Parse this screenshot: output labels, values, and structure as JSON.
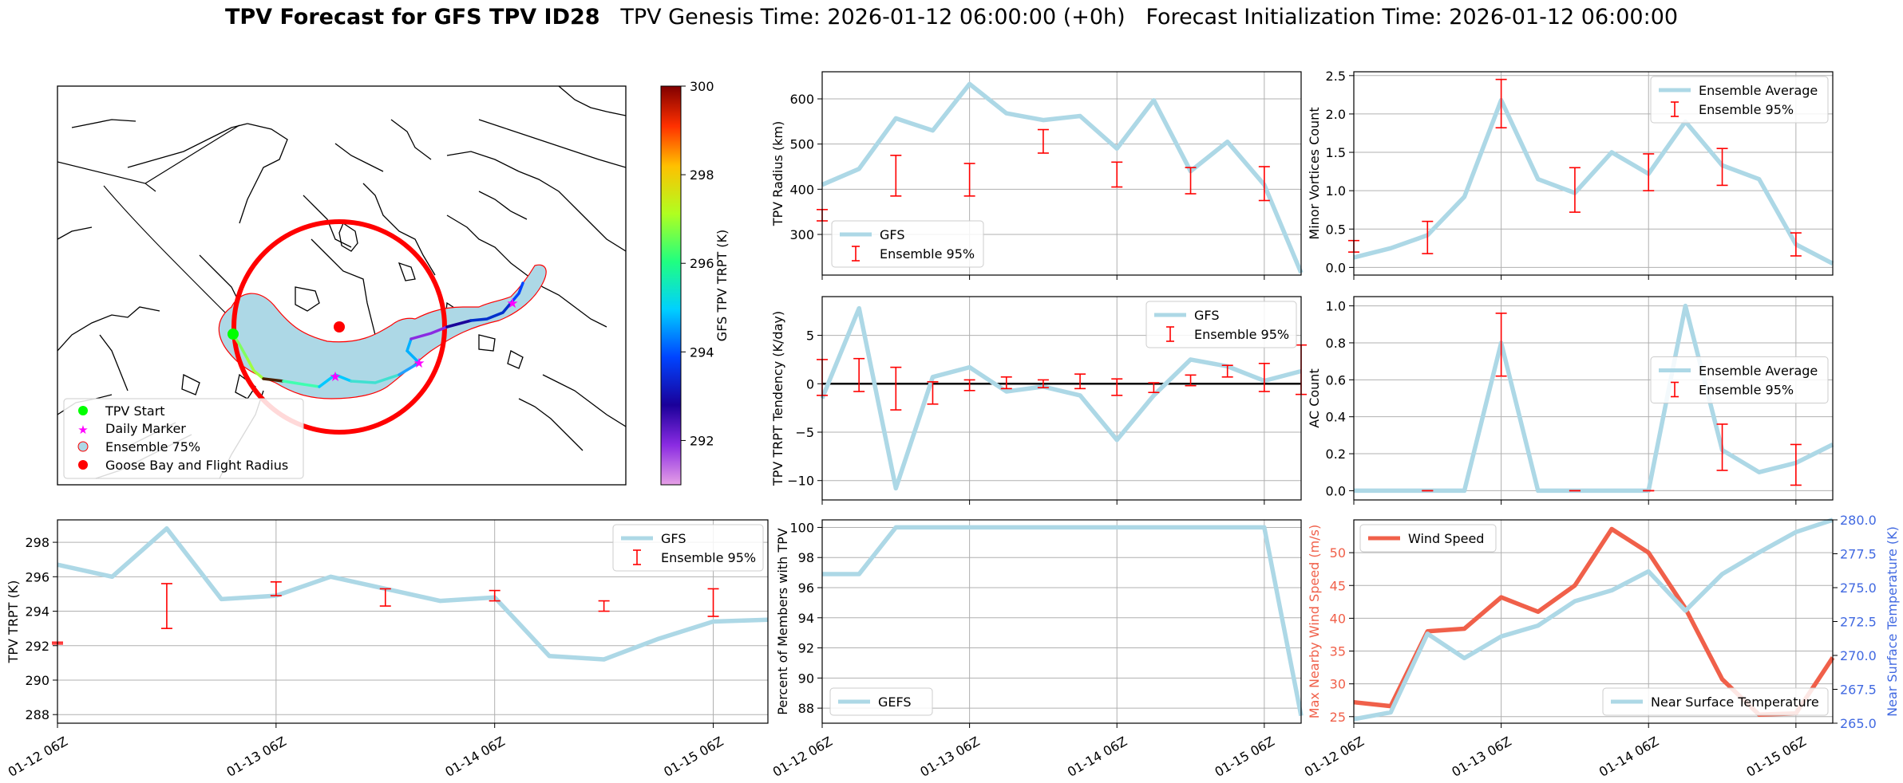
{
  "title": {
    "main": "TPV Forecast for GFS TPV ID28",
    "genesis": "TPV Genesis Time: 2026-01-12 06:00:00 (+0h)",
    "init": "Forecast Initialization Time: 2026-01-12 06:00:00"
  },
  "colors": {
    "gfs_line": "#add8e6",
    "ensemble": "#ff0000",
    "wind": "#f0604a",
    "temp_axis": "#4169e1",
    "ring": "#ff0000",
    "start": "#00ff00",
    "daily": "#ff00ff"
  },
  "time_ticks": [
    "01-12 06Z",
    "01-13 06Z",
    "01-14 06Z",
    "01-15 06Z"
  ],
  "chart_data": [
    {
      "id": "map",
      "type": "map",
      "colorbar": {
        "label": "GFS TPV TRPT (K)",
        "min": 291,
        "max": 300,
        "ticks": [
          292,
          294,
          296,
          298,
          300
        ]
      },
      "legend": [
        "TPV Start",
        "Daily Marker",
        "Ensemble 75%",
        "Goose Bay and Flight Radius"
      ]
    },
    {
      "id": "radius",
      "type": "line",
      "ylabel": "TPV Radius (km)",
      "ylim": [
        210,
        660
      ],
      "yticks": [
        300,
        400,
        500,
        600
      ],
      "x": [
        0,
        0.25,
        0.5,
        0.75,
        1,
        1.25,
        1.5,
        1.75,
        2,
        2.25,
        2.5,
        2.75,
        3,
        3.25
      ],
      "series": [
        {
          "name": "GFS",
          "values": [
            410,
            445,
            557,
            530,
            633,
            568,
            553,
            562,
            490,
            597,
            440,
            505,
            410,
            215
          ]
        }
      ],
      "errorbars": {
        "name": "Ensemble 95%",
        "x": [
          0,
          0.5,
          1,
          1.5,
          2,
          2.5,
          3
        ],
        "low": [
          330,
          385,
          385,
          480,
          405,
          390,
          375
        ],
        "high": [
          355,
          475,
          457,
          532,
          460,
          448,
          450
        ]
      },
      "legend": {
        "loc": "lower left",
        "entries": [
          "GFS",
          "Ensemble 95%"
        ]
      }
    },
    {
      "id": "minor",
      "type": "line",
      "ylabel": "Minor Vortices Count",
      "ylim": [
        -0.1,
        2.55
      ],
      "yticks": [
        "0.0",
        "0.5",
        "1.0",
        "1.5",
        "2.0",
        "2.5"
      ],
      "x": [
        0,
        0.25,
        0.5,
        0.75,
        1,
        1.25,
        1.5,
        1.75,
        2,
        2.25,
        2.5,
        2.75,
        3,
        3.25
      ],
      "series": [
        {
          "name": "Ensemble Average",
          "values": [
            0.13,
            0.25,
            0.42,
            0.92,
            2.18,
            1.15,
            0.97,
            1.5,
            1.22,
            1.9,
            1.33,
            1.15,
            0.3,
            0.05
          ]
        }
      ],
      "errorbars": {
        "name": "Ensemble 95%",
        "x": [
          0,
          0.5,
          1,
          1.5,
          2,
          2.5,
          3
        ],
        "low": [
          0.2,
          0.18,
          1.82,
          0.72,
          1.0,
          1.07,
          0.15
        ],
        "high": [
          0.35,
          0.6,
          2.45,
          1.3,
          1.48,
          1.55,
          0.45
        ]
      },
      "legend": {
        "loc": "upper right",
        "entries": [
          "Ensemble Average",
          "Ensemble 95%"
        ]
      }
    },
    {
      "id": "tendency",
      "type": "line",
      "ylabel": "TPV TRPT Tendency (K/day)",
      "ylim": [
        -12,
        9
      ],
      "yticks": [
        "−10",
        "−5",
        "0",
        "5"
      ],
      "zero_line": true,
      "x": [
        0,
        0.25,
        0.5,
        0.75,
        1,
        1.25,
        1.5,
        1.75,
        2,
        2.25,
        2.5,
        2.75,
        3,
        3.25
      ],
      "series": [
        {
          "name": "GFS",
          "values": [
            -1.5,
            7.8,
            -10.8,
            0.7,
            1.7,
            -0.8,
            -0.3,
            -1.2,
            -5.8,
            -1.2,
            2.5,
            1.8,
            0.3,
            1.3
          ]
        }
      ],
      "errorbars": {
        "name": "Ensemble 95%",
        "x": [
          0,
          0.25,
          0.5,
          0.75,
          1,
          1.25,
          1.5,
          1.75,
          2,
          2.25,
          2.5,
          2.75,
          3,
          3.25
        ],
        "low": [
          -1.2,
          -0.8,
          -2.7,
          -2.1,
          -0.7,
          -0.5,
          -0.4,
          -0.5,
          -1.2,
          -0.9,
          -0.2,
          0.7,
          -0.8,
          -1.1
        ],
        "high": [
          2.5,
          2.6,
          1.7,
          0.2,
          0.4,
          0.7,
          0.4,
          1.0,
          0.5,
          0.1,
          0.9,
          1.9,
          2.1,
          4.0
        ]
      },
      "legend": {
        "loc": "upper right",
        "entries": [
          "GFS",
          "Ensemble 95%"
        ]
      }
    },
    {
      "id": "ac",
      "type": "line",
      "ylabel": "AC Count",
      "ylim": [
        -0.05,
        1.05
      ],
      "yticks": [
        "0.0",
        "0.2",
        "0.4",
        "0.6",
        "0.8",
        "1.0"
      ],
      "x": [
        0,
        0.25,
        0.5,
        0.75,
        1,
        1.25,
        1.5,
        1.75,
        2,
        2.25,
        2.5,
        2.75,
        3,
        3.25
      ],
      "series": [
        {
          "name": "Ensemble Average",
          "values": [
            0,
            0,
            0,
            0,
            0.8,
            0,
            0,
            0,
            0,
            1.0,
            0.22,
            0.1,
            0.15,
            0.25
          ]
        }
      ],
      "errorbars": {
        "name": "Ensemble 95%",
        "x": [
          0.5,
          1,
          1.5,
          2,
          2.5,
          3
        ],
        "low": [
          0,
          0.62,
          0,
          0,
          0.11,
          0.03
        ],
        "high": [
          0,
          0.96,
          0,
          0,
          0.36,
          0.25
        ]
      },
      "legend": {
        "loc": "center right",
        "entries": [
          "Ensemble Average",
          "Ensemble 95%"
        ]
      }
    },
    {
      "id": "trpt",
      "type": "line",
      "ylabel": "TPV TRPT (K)",
      "ylim": [
        287.5,
        299.3
      ],
      "yticks": [
        288,
        290,
        292,
        294,
        296,
        298
      ],
      "x": [
        0,
        0.25,
        0.5,
        0.75,
        1,
        1.25,
        1.5,
        1.75,
        2,
        2.25,
        2.5,
        2.75,
        3,
        3.25
      ],
      "series": [
        {
          "name": "GFS",
          "values": [
            296.7,
            296.0,
            298.8,
            294.7,
            294.9,
            296.0,
            295.3,
            294.6,
            294.8,
            291.4,
            291.2,
            292.4,
            293.4,
            293.5
          ]
        }
      ],
      "errorbars": {
        "name": "Ensemble 95%",
        "x": [
          0,
          0.5,
          1,
          1.5,
          2,
          2.5,
          3
        ],
        "low": [
          292.1,
          293.0,
          294.9,
          294.3,
          294.6,
          294.0,
          293.7
        ],
        "high": [
          292.2,
          295.6,
          295.7,
          295.3,
          295.2,
          294.6,
          295.3
        ]
      },
      "legend": {
        "loc": "upper right",
        "entries": [
          "GFS",
          "Ensemble 95%"
        ]
      }
    },
    {
      "id": "percent",
      "type": "line",
      "ylabel": "Percent of Members with TPV",
      "ylim": [
        87,
        100.5
      ],
      "yticks": [
        88,
        90,
        92,
        94,
        96,
        98,
        100
      ],
      "x": [
        0,
        0.25,
        0.5,
        0.75,
        1,
        1.25,
        1.5,
        1.75,
        2,
        2.25,
        2.5,
        2.75,
        3,
        3.25
      ],
      "series": [
        {
          "name": "GEFS",
          "values": [
            96.9,
            96.9,
            100,
            100,
            100,
            100,
            100,
            100,
            100,
            100,
            100,
            100,
            100,
            87.5
          ]
        }
      ],
      "legend": {
        "loc": "lower left",
        "entries": [
          "GEFS"
        ]
      }
    },
    {
      "id": "wind",
      "type": "line",
      "ylabel": "Max Nearby Wind Speed (m/s)",
      "y2label": "Near Surface Temperature (K)",
      "ylim": [
        24,
        55
      ],
      "yticks": [
        25,
        30,
        35,
        40,
        45,
        50
      ],
      "y2lim": [
        265,
        280
      ],
      "y2ticks": [
        "265.0",
        "267.5",
        "270.0",
        "272.5",
        "275.0",
        "277.5",
        "280.0"
      ],
      "x": [
        0,
        0.25,
        0.5,
        0.75,
        1,
        1.25,
        1.5,
        1.75,
        2,
        2.25,
        2.5,
        2.75,
        3,
        3.25
      ],
      "series": [
        {
          "name": "Wind Speed",
          "values": [
            27.2,
            26.6,
            38.0,
            38.4,
            43.2,
            41.0,
            45.0,
            53.6,
            50.0,
            41.5,
            30.7,
            25.3,
            25.5,
            34.0
          ]
        },
        {
          "name": "Near Surface Temperature",
          "values": [
            265.3,
            265.8,
            271.6,
            269.8,
            271.4,
            272.2,
            274.0,
            274.8,
            276.2,
            273.3,
            276.0,
            277.6,
            279.1,
            280.0
          ]
        }
      ],
      "legend": {
        "loc": "upper left / lower right",
        "entries": [
          "Wind Speed",
          "Near Surface Temperature"
        ]
      }
    }
  ]
}
